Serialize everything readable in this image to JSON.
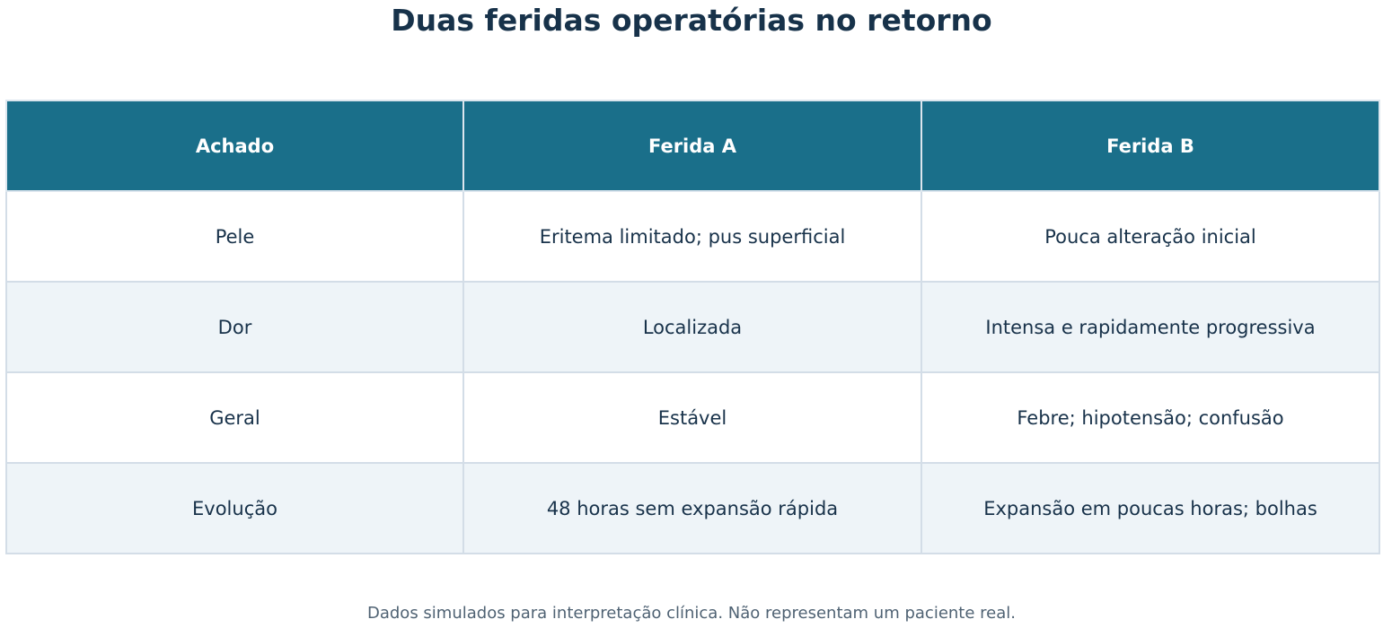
{
  "title": "Duas feridas operatórias no retorno",
  "table": {
    "headers": [
      "Achado",
      "Ferida A",
      "Ferida B"
    ],
    "rows": [
      [
        "Pele",
        "Eritema limitado; pus superficial",
        "Pouca alteração inicial"
      ],
      [
        "Dor",
        "Localizada",
        "Intensa e rapidamente progressiva"
      ],
      [
        "Geral",
        "Estável",
        "Febre; hipotensão; confusão"
      ],
      [
        "Evolução",
        "48 horas sem expansão rápida",
        "Expansão em poucas horas; bolhas"
      ]
    ]
  },
  "footnote": "Dados simulados para interpretação clínica. Não representam um paciente real.",
  "colors": {
    "header_bg": "#1a6f8a",
    "title_text": "#17324a",
    "stripe": "#eef4f8",
    "border": "#d3dde7"
  }
}
